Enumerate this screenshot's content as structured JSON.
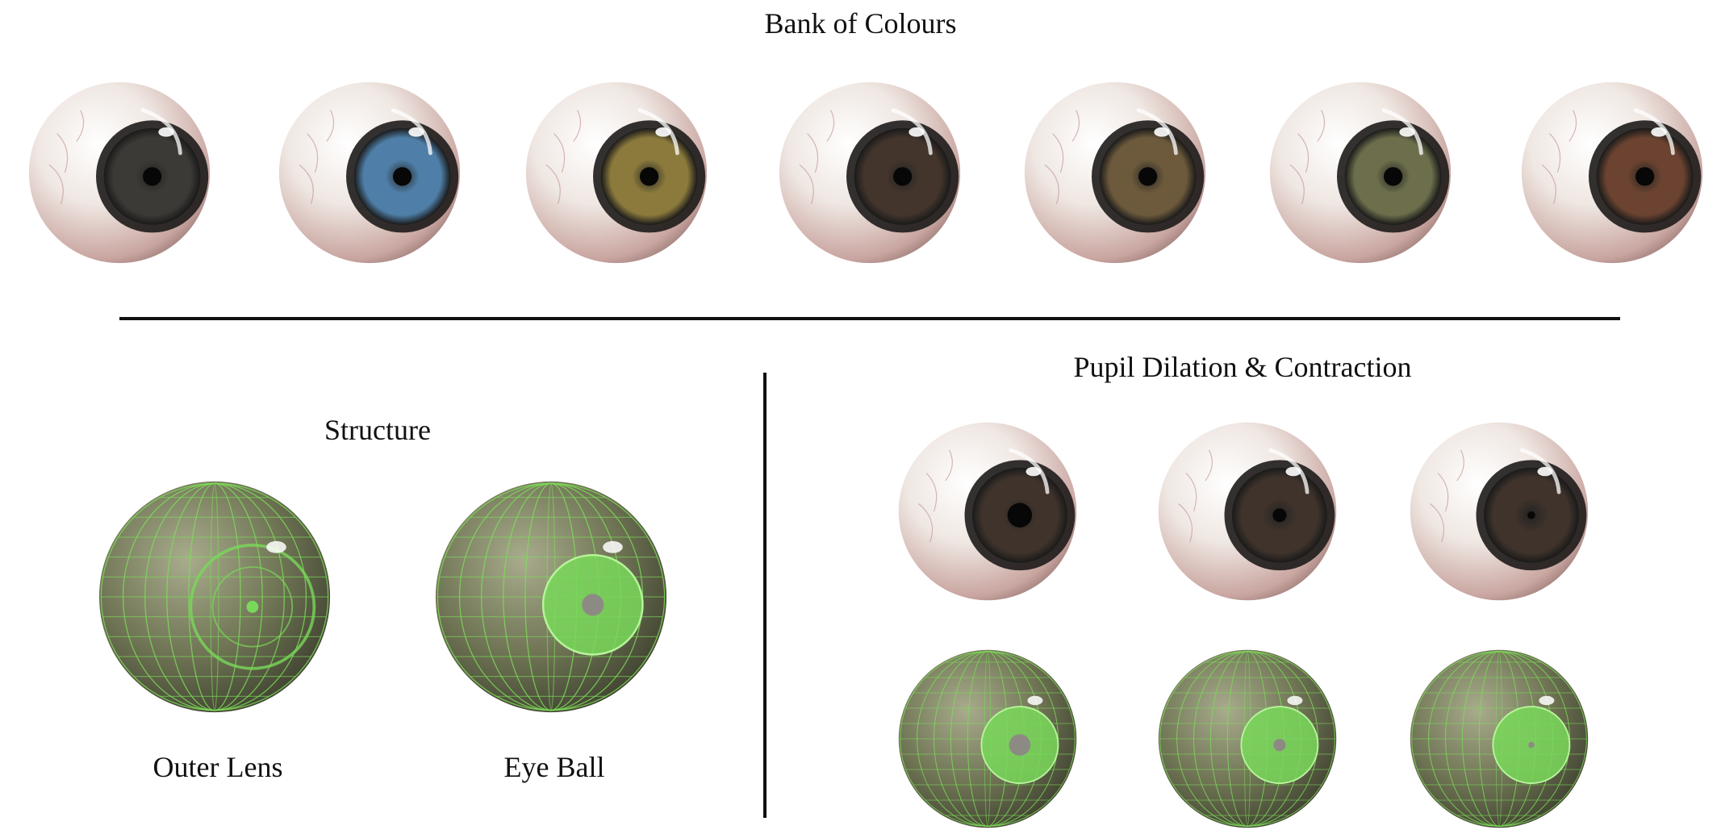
{
  "sections": {
    "bank": {
      "title": "Bank of Colours"
    },
    "structure": {
      "title": "Structure",
      "labels": [
        "Outer Lens",
        "Eye Ball"
      ]
    },
    "pupil": {
      "title": "Pupil Dilation & Contraction"
    }
  },
  "eyes": {
    "bank_iris_colors": [
      "#3c3a36",
      "#4f7fa8",
      "#8b7a3c",
      "#43352c",
      "#6d5a3c",
      "#6d6f4c",
      "#6b4330"
    ],
    "pupil_sizes_realistic": [
      0.26,
      0.15,
      0.09
    ],
    "pupil_sizes_wireframe": [
      0.24,
      0.13,
      0.06
    ],
    "colors": {
      "sclera": "#efe7e2",
      "sclera_edge": "#c9a5a0",
      "wire_body": "#6f7454",
      "wire_line": "#7dde5a",
      "wire_iris": "#79d85a"
    }
  }
}
